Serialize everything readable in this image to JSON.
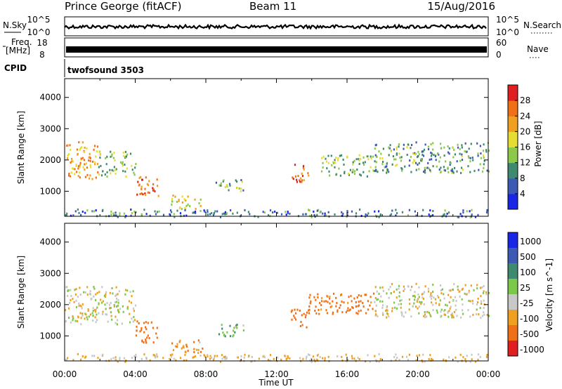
{
  "header": {
    "station": "Prince George (fitACF)",
    "beam": "Beam 11",
    "date": "15/Aug/2016"
  },
  "summary_panels": {
    "nsky_label": "N.Sky",
    "nsky_ticks": [
      "10^5",
      "10^0"
    ],
    "nsearch_label": "N.Search",
    "freq_label_1": "Freq.",
    "freq_label_2": "[MHz]",
    "freq_ticks": [
      "18",
      "8"
    ],
    "nave_label": "Nave",
    "nave_ticks": [
      "60",
      "0"
    ],
    "cpid_label": "CPID",
    "cpid_value": "twofsound 3503"
  },
  "chart_data": [
    {
      "type": "heatmap",
      "quantity": "Power",
      "ylabel": "Slant Range [km]",
      "xlabel": "",
      "ylim": [
        200,
        4600
      ],
      "y_ticks": [
        1000,
        2000,
        3000,
        4000
      ],
      "colorbar_label": "Power [dB]",
      "colorbar_ticks": [
        4,
        8,
        12,
        16,
        20,
        24,
        28
      ],
      "colorbar_range": [
        0,
        32
      ],
      "colors": [
        "#1a26e6",
        "#3c5ab4",
        "#3d8a6e",
        "#8cc84a",
        "#e6dc32",
        "#f0a020",
        "#f07018",
        "#e02020"
      ],
      "echo_regions": [
        {
          "t0": 0.0,
          "t1": 1.9,
          "r0": 1400,
          "r1": 2600,
          "level": 22
        },
        {
          "t0": 1.9,
          "t1": 4.0,
          "r0": 1500,
          "r1": 2300,
          "level": 14
        },
        {
          "t0": 4.0,
          "t1": 5.3,
          "r0": 800,
          "r1": 1500,
          "level": 27
        },
        {
          "t0": 6.0,
          "t1": 7.8,
          "r0": 450,
          "r1": 900,
          "level": 18
        },
        {
          "t0": 8.5,
          "t1": 10.2,
          "r0": 1000,
          "r1": 1400,
          "level": 13
        },
        {
          "t0": 12.8,
          "t1": 13.8,
          "r0": 1300,
          "r1": 1900,
          "level": 26
        },
        {
          "t0": 14.5,
          "t1": 17.5,
          "r0": 1500,
          "r1": 2200,
          "level": 14
        },
        {
          "t0": 17.5,
          "t1": 24.0,
          "r0": 1600,
          "r1": 2600,
          "level": 11
        },
        {
          "t0": 0.0,
          "t1": 24.0,
          "r0": 200,
          "r1": 450,
          "level": 8
        }
      ]
    },
    {
      "type": "heatmap",
      "quantity": "Velocity",
      "ylabel": "Slant Range [km]",
      "xlabel": "Time UT",
      "ylim": [
        200,
        4600
      ],
      "y_ticks": [
        1000,
        2000,
        3000,
        4000
      ],
      "x_ticks": [
        "00:00",
        "04:00",
        "08:00",
        "12:00",
        "16:00",
        "20:00",
        "00:00"
      ],
      "xlim": [
        0,
        24
      ],
      "colorbar_label": "Velocity [m s^-1]",
      "colorbar_ticks": [
        1000,
        500,
        100,
        25,
        -25,
        -100,
        -500,
        -1000
      ],
      "colors": [
        "#1a26e6",
        "#3c5ab4",
        "#3d8a6e",
        "#7cc84a",
        "#c8c8c8",
        "#f0a020",
        "#f07018",
        "#e02020"
      ],
      "echo_regions": [
        {
          "t0": 0.0,
          "t1": 4.0,
          "r0": 1400,
          "r1": 2600,
          "value": 0
        },
        {
          "t0": 4.0,
          "t1": 5.3,
          "r0": 800,
          "r1": 1500,
          "value": -300
        },
        {
          "t0": 6.0,
          "t1": 7.8,
          "r0": 450,
          "r1": 900,
          "value": -80
        },
        {
          "t0": 8.5,
          "t1": 10.2,
          "r0": 1000,
          "r1": 1400,
          "value": 60
        },
        {
          "t0": 12.8,
          "t1": 13.8,
          "r0": 1300,
          "r1": 1900,
          "value": -200
        },
        {
          "t0": 13.8,
          "t1": 17.5,
          "r0": 1700,
          "r1": 2400,
          "value": -150
        },
        {
          "t0": 17.5,
          "t1": 24.0,
          "r0": 1600,
          "r1": 2700,
          "value": 0
        },
        {
          "t0": 0.0,
          "t1": 24.0,
          "r0": 200,
          "r1": 450,
          "value": -40
        }
      ]
    }
  ]
}
